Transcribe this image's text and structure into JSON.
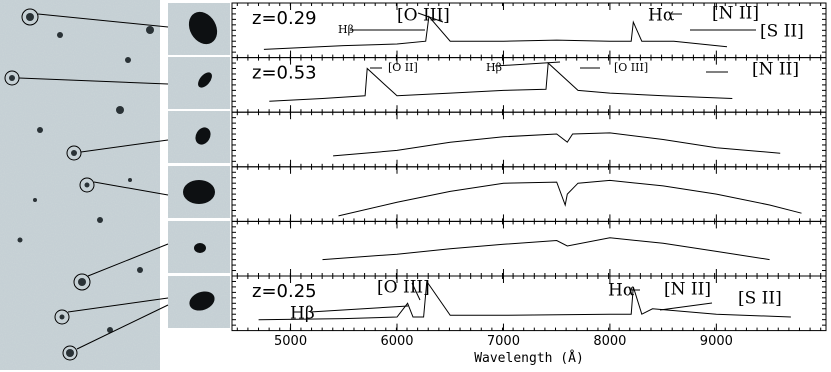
{
  "chart_data": [
    {
      "type": "line",
      "label": "z=0.29",
      "annotations": [
        "Hβ",
        "[O III]",
        "Hα",
        "[N II]",
        "[S II]"
      ],
      "ylim": [
        0,
        1
      ],
      "x": [
        4750,
        5500,
        6000,
        6270,
        6300,
        6500,
        7000,
        7500,
        8000,
        8200,
        8220,
        8300,
        8600,
        9100
      ],
      "values": [
        0.15,
        0.22,
        0.25,
        0.3,
        0.75,
        0.3,
        0.3,
        0.32,
        0.3,
        0.3,
        0.65,
        0.3,
        0.3,
        0.2
      ]
    },
    {
      "type": "line",
      "label": "z=0.53",
      "annotations": [
        "[O II]",
        "Hβ",
        "[O III]",
        "[N II]"
      ],
      "ylim": [
        0,
        1
      ],
      "x": [
        4800,
        5300,
        5700,
        5720,
        6000,
        6500,
        7000,
        7400,
        7420,
        7700,
        8000,
        8500,
        9150
      ],
      "values": [
        0.2,
        0.25,
        0.3,
        0.8,
        0.3,
        0.35,
        0.4,
        0.42,
        0.9,
        0.4,
        0.35,
        0.3,
        0.25
      ]
    },
    {
      "type": "line",
      "ylim": [
        0,
        1
      ],
      "x": [
        5400,
        6000,
        6500,
        7000,
        7500,
        7600,
        7650,
        8000,
        8500,
        9000,
        9600
      ],
      "values": [
        0.2,
        0.3,
        0.45,
        0.55,
        0.6,
        0.45,
        0.6,
        0.62,
        0.5,
        0.35,
        0.25
      ]
    },
    {
      "type": "line",
      "ylim": [
        0,
        1
      ],
      "x": [
        5450,
        6000,
        6500,
        7000,
        7500,
        7580,
        7600,
        7700,
        8000,
        8500,
        9000,
        9500,
        9800
      ],
      "values": [
        0.1,
        0.35,
        0.55,
        0.7,
        0.72,
        0.3,
        0.5,
        0.7,
        0.75,
        0.65,
        0.5,
        0.3,
        0.15
      ]
    },
    {
      "type": "line",
      "ylim": [
        0,
        1
      ],
      "x": [
        5300,
        6000,
        6500,
        7000,
        7500,
        7600,
        8000,
        8500,
        9000,
        9500
      ],
      "values": [
        0.3,
        0.4,
        0.5,
        0.58,
        0.65,
        0.55,
        0.7,
        0.6,
        0.45,
        0.3
      ]
    },
    {
      "type": "line",
      "label": "z=0.25",
      "annotations": [
        "[O III]",
        "Hβ",
        "Hα",
        "[N II]",
        "[S II]"
      ],
      "ylim": [
        0,
        1
      ],
      "x": [
        4700,
        5500,
        6000,
        6100,
        6150,
        6250,
        6280,
        6500,
        7000,
        8000,
        8200,
        8220,
        8300,
        8400,
        9000,
        9700
      ],
      "values": [
        0.2,
        0.22,
        0.25,
        0.5,
        0.25,
        0.25,
        0.9,
        0.28,
        0.28,
        0.3,
        0.3,
        0.8,
        0.3,
        0.4,
        0.3,
        0.25
      ],
      "xlabel": "Wavelength (Å)",
      "xlim": [
        4450,
        10030
      ],
      "xticks": [
        5000,
        6000,
        7000,
        8000,
        9000
      ]
    }
  ]
}
